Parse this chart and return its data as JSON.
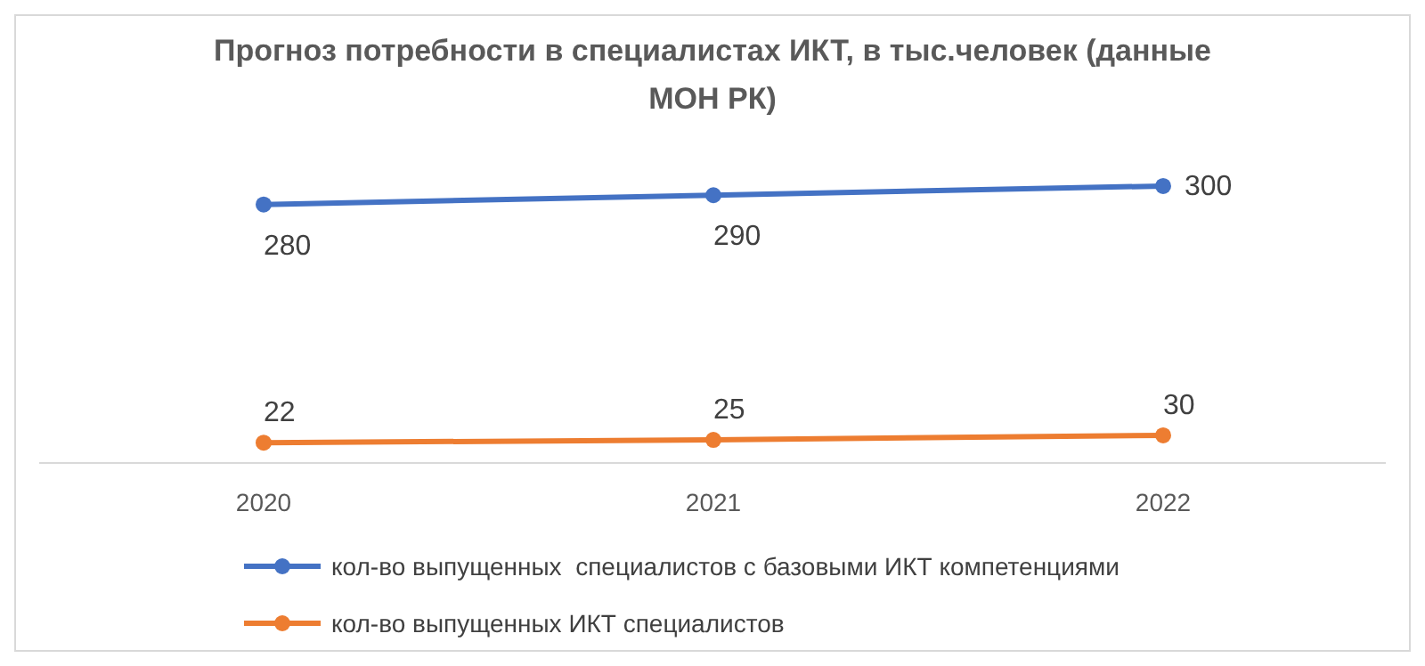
{
  "chart_data": {
    "type": "line",
    "title": "Прогноз потребности в специалистах ИКТ, в тыс.человек (данные МОН РК)",
    "categories": [
      "2020",
      "2021",
      "2022"
    ],
    "series": [
      {
        "name": "кол-во выпущенных  специалистов с базовыми ИКТ компетенциями",
        "color": "#4472c4",
        "values": [
          280,
          290,
          300
        ]
      },
      {
        "name": "кол-во выпущенных ИКТ специалистов",
        "color": "#ed7d31",
        "values": [
          22,
          25,
          30
        ]
      }
    ],
    "data_labels": true,
    "legend": "bottom",
    "marker": "circle",
    "grid": false
  }
}
